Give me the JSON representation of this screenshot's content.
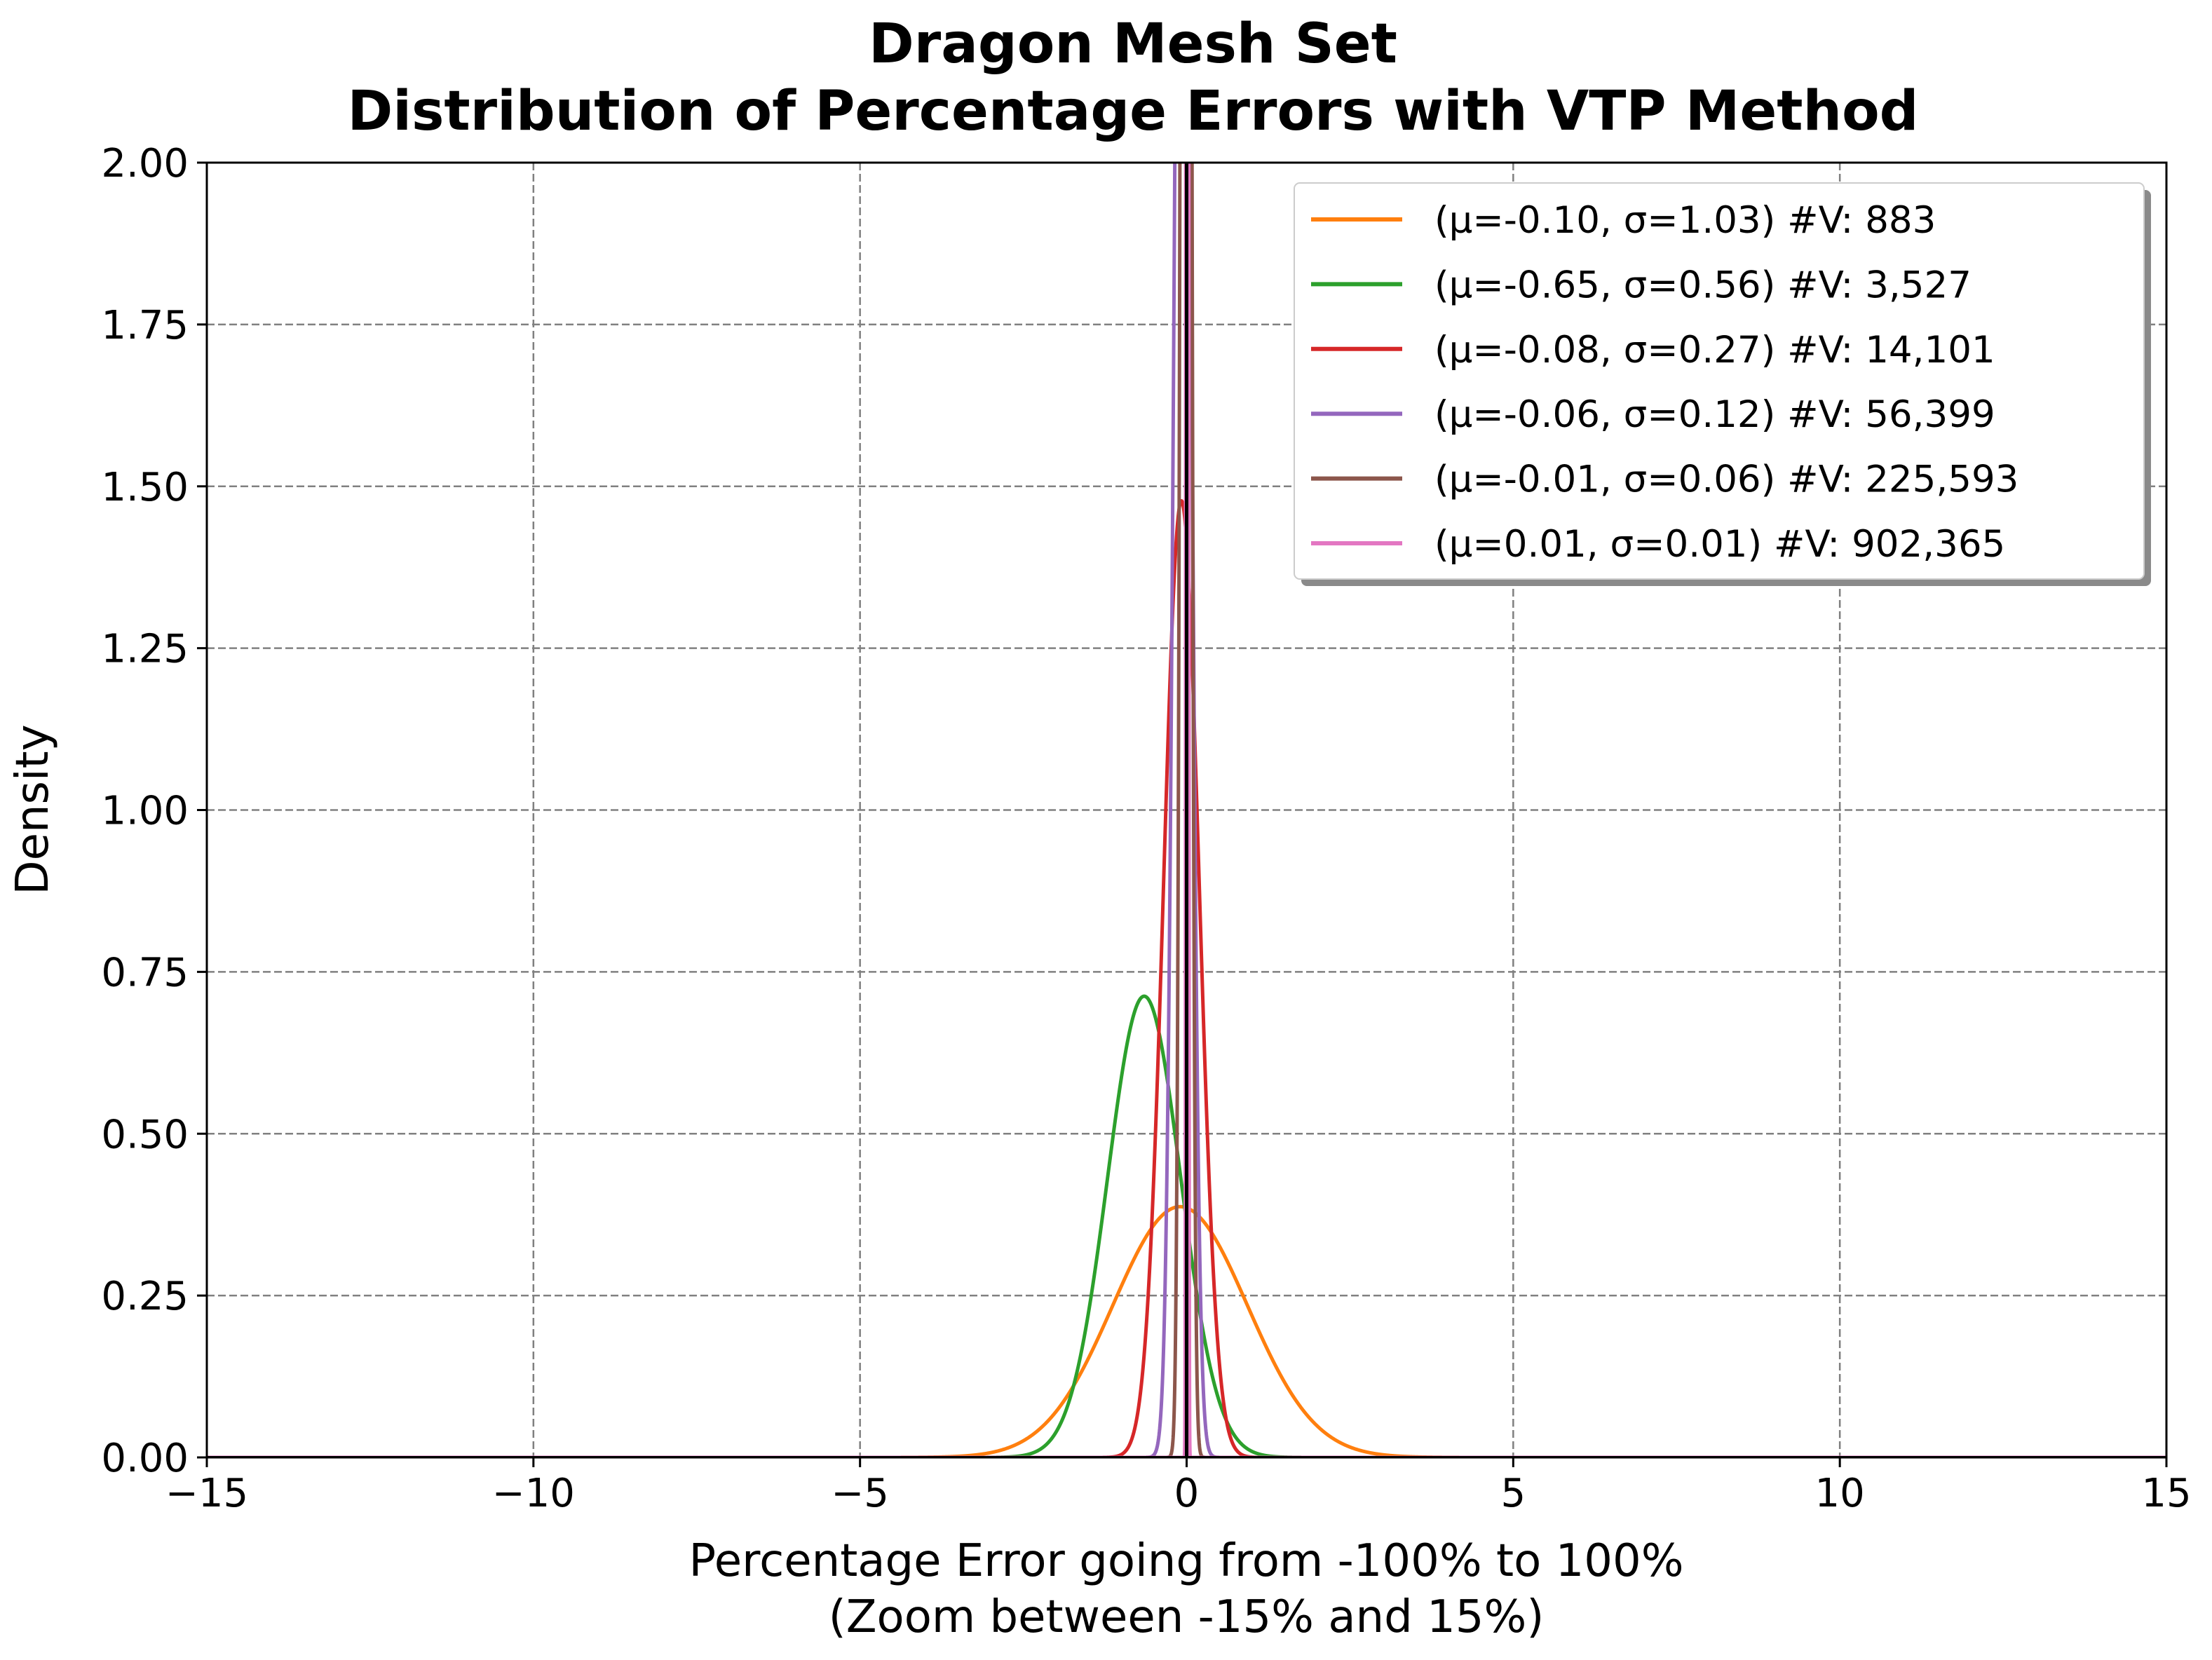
{
  "chart_data": {
    "type": "line",
    "title": "Dragon Mesh Set",
    "subtitle": "Distribution of Percentage Errors with VTP Method",
    "xlabel": "Percentage Error going from -100% to 100%",
    "xlabel2": "(Zoom between -15% and 15%)",
    "ylabel": "Density",
    "xlim": [
      -15,
      15
    ],
    "ylim": [
      0,
      2.0
    ],
    "xticks": [
      -15,
      -10,
      -5,
      0,
      5,
      10,
      15
    ],
    "xtick_labels": [
      "−15",
      "−10",
      "−5",
      "0",
      "5",
      "10",
      "15"
    ],
    "yticks": [
      0,
      0.25,
      0.5,
      0.75,
      1.0,
      1.25,
      1.5,
      1.75,
      2.0
    ],
    "ytick_labels": [
      "0.00",
      "0.25",
      "0.50",
      "0.75",
      "1.00",
      "1.25",
      "1.50",
      "1.75",
      "2.00"
    ],
    "grid": true,
    "legend_position": "top-right",
    "vline": {
      "x": 0,
      "color": "#000000"
    },
    "series": [
      {
        "name": "(μ=-0.10, σ=1.03) #V: 883",
        "mu": -0.1,
        "sigma": 1.03,
        "color": "#ff7f0e"
      },
      {
        "name": "(μ=-0.65, σ=0.56) #V: 3,527",
        "mu": -0.65,
        "sigma": 0.56,
        "color": "#2ca02c"
      },
      {
        "name": "(μ=-0.08, σ=0.27) #V: 14,101",
        "mu": -0.08,
        "sigma": 0.27,
        "color": "#d62728"
      },
      {
        "name": "(μ=-0.06, σ=0.12) #V: 56,399",
        "mu": -0.06,
        "sigma": 0.12,
        "color": "#9467bd"
      },
      {
        "name": "(μ=-0.01, σ=0.06) #V: 225,593",
        "mu": -0.01,
        "sigma": 0.06,
        "color": "#8c564b"
      },
      {
        "name": "(μ=0.01, σ=0.01) #V: 902,365",
        "mu": 0.01,
        "sigma": 0.01,
        "color": "#e377c2"
      }
    ]
  }
}
